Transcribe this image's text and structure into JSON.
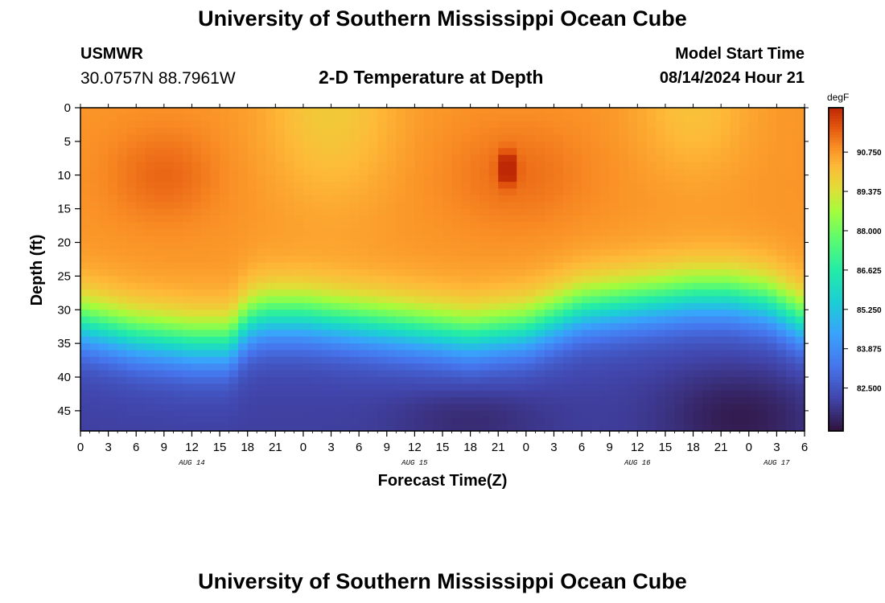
{
  "header": {
    "title": "University of Southern Mississippi Ocean Cube",
    "station_name": "USMWR",
    "station_coords": "30.0757N  88.7961W",
    "subtitle": "2-D Temperature at Depth",
    "model_start_label": "Model Start Time",
    "model_start_value": "08/14/2024 Hour 21"
  },
  "footer": {
    "title": "University of Southern Mississippi Ocean Cube"
  },
  "chart_data": {
    "type": "heatmap",
    "title": "2-D Temperature at Depth",
    "xlabel": "Forecast Time(Z)",
    "ylabel": "Depth (ft)",
    "x_start_label": "0",
    "x_ticks": [
      "0",
      "3",
      "6",
      "9",
      "12",
      "15",
      "18",
      "21",
      "0",
      "3",
      "6",
      "9",
      "12",
      "15",
      "18",
      "21",
      "0",
      "3",
      "6",
      "9",
      "12",
      "15",
      "18",
      "21",
      "0",
      "3",
      "6"
    ],
    "x_dates": [
      {
        "label": "AUG 14",
        "tick_index": 4
      },
      {
        "label": "AUG 15",
        "tick_index": 12
      },
      {
        "label": "AUG 16",
        "tick_index": 20
      },
      {
        "label": "AUG 17",
        "tick_index": 25
      }
    ],
    "xlim_hours": [
      0,
      78
    ],
    "ylim_ft": [
      0,
      48
    ],
    "y_ticks": [
      0,
      5,
      10,
      15,
      20,
      25,
      30,
      35,
      40,
      45
    ],
    "colorbar": {
      "unit": "degF",
      "min": 81.0,
      "max": 92.3,
      "tick_values": [
        90.75,
        89.375,
        88.0,
        86.625,
        85.25,
        83.875,
        82.5
      ],
      "tick_labels": [
        "90.750",
        "89.375",
        "88.000",
        "86.625",
        "85.250",
        "83.875",
        "82.500"
      ]
    },
    "surface_temp_degF": 90.8,
    "bottom_temp_degF": 82.0,
    "thermocline_depth_ft": [
      [
        0,
        28
      ],
      [
        6,
        30
      ],
      [
        12,
        31
      ],
      [
        16,
        31
      ],
      [
        18,
        28
      ],
      [
        20,
        27
      ],
      [
        24,
        27
      ],
      [
        30,
        28
      ],
      [
        36,
        29
      ],
      [
        42,
        30
      ],
      [
        48,
        29
      ],
      [
        54,
        26
      ],
      [
        60,
        25
      ],
      [
        66,
        24
      ],
      [
        70,
        24
      ],
      [
        74,
        25
      ],
      [
        78,
        28
      ]
    ]
  }
}
